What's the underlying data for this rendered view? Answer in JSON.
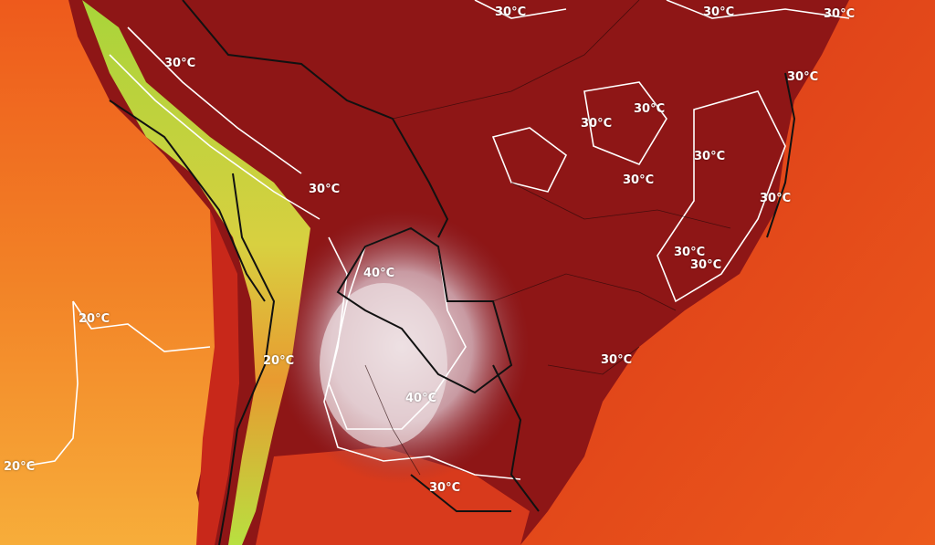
{
  "map": {
    "type": "surface temperature map",
    "region": "South America",
    "colors": {
      "pacific_ocean": "#f2701f",
      "pacific_ocean_south": "#f7a435",
      "atlantic_ocean": "#e2421a",
      "land_hot": "#8e1616",
      "extreme_heat": "#e6d2d6",
      "andes_cool": "#9acd32",
      "andes_mild": "#e8c040",
      "isotherm_line": "#ffffff",
      "border_line": "#111111"
    },
    "isotherm_labels": [
      "30°C",
      "30°C",
      "30°C",
      "30°C",
      "30°C",
      "30°C",
      "30°C",
      "30°C",
      "30°C",
      "30°C",
      "30°C",
      "30°C",
      "30°C",
      "30°C",
      "30°C",
      "40°C",
      "40°C",
      "20°C",
      "20°C",
      "20°C"
    ]
  }
}
